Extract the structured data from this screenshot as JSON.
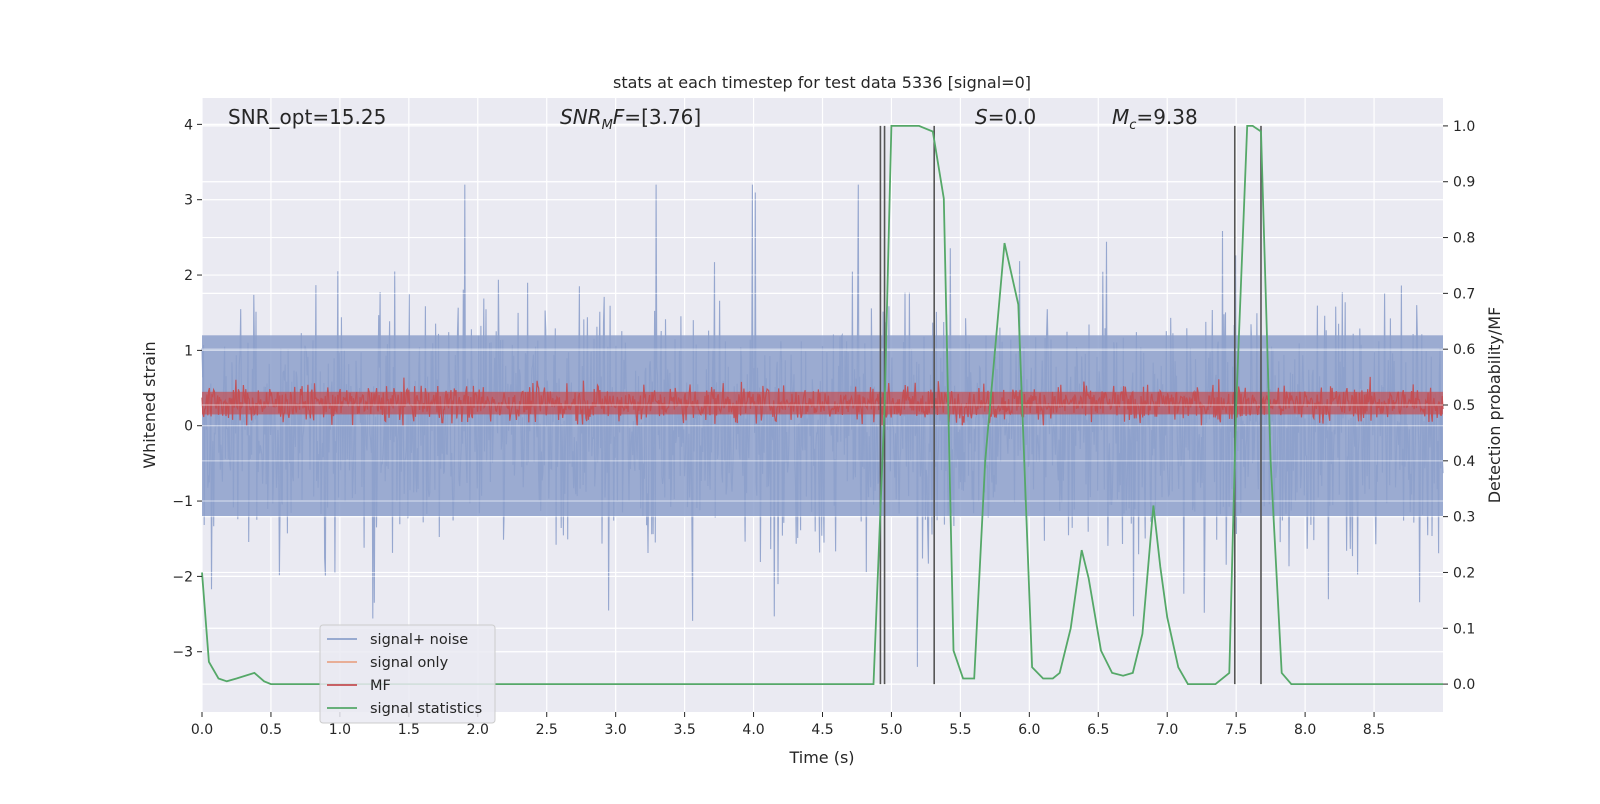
{
  "chart_data": {
    "type": "line",
    "title": "stats at each timestep for test data 5336 [signal=0]",
    "xlabel": "Time (s)",
    "ylabel_left": "Whitened strain",
    "ylabel_right": "Detection probability/MF",
    "xlim": [
      0.0,
      9.0
    ],
    "ylim_left": [
      -3.8,
      4.35
    ],
    "ylim_right": [
      -0.05,
      1.05
    ],
    "x_ticks": [
      0.0,
      0.5,
      1.0,
      1.5,
      2.0,
      2.5,
      3.0,
      3.5,
      4.0,
      4.5,
      5.0,
      5.5,
      6.0,
      6.5,
      7.0,
      7.5,
      8.0,
      8.5
    ],
    "x_tick_labels": [
      "0.0",
      "0.5",
      "1.0",
      "1.5",
      "2.0",
      "2.5",
      "3.0",
      "3.5",
      "4.0",
      "4.5",
      "5.0",
      "5.5",
      "6.0",
      "6.5",
      "7.0",
      "7.5",
      "8.0",
      "8.5"
    ],
    "y_left_ticks": [
      4,
      3,
      2,
      1,
      0,
      -1,
      -2,
      -3
    ],
    "y_left_tick_labels": [
      "4",
      "3",
      "2",
      "1",
      "0",
      "−1",
      "−2",
      "−3"
    ],
    "y_right_ticks": [
      1.0,
      0.9,
      0.8,
      0.7,
      0.6,
      0.5,
      0.4,
      0.3,
      0.2,
      0.1,
      0.0
    ],
    "y_right_tick_labels": [
      "1.0",
      "0.9",
      "0.8",
      "0.7",
      "0.6",
      "0.5",
      "0.4",
      "0.3",
      "0.2",
      "0.1",
      "0.0"
    ],
    "grid": true,
    "legend_position": "lower-left",
    "annotations": {
      "snr_opt": "SNR_opt=15.25",
      "snr_mf": "[3.76]",
      "s_value": "0.0",
      "mc_value": "9.38"
    },
    "series": [
      {
        "name": "signal+ noise",
        "color": "#8da0cb",
        "axis": "left",
        "style": "noise band",
        "range": [
          -3.4,
          3.2
        ]
      },
      {
        "name": "signal only",
        "color": "#e8a58a",
        "axis": "left",
        "values": []
      },
      {
        "name": "MF",
        "color": "#c44e52",
        "axis": "left",
        "style": "noise band",
        "range": [
          0.0,
          1.0
        ]
      },
      {
        "name": "signal statistics",
        "color": "#55a868",
        "axis": "right",
        "x": [
          0.0,
          0.05,
          0.12,
          0.18,
          0.25,
          0.38,
          0.45,
          0.5,
          1.0,
          4.0,
          4.87,
          4.95,
          5.0,
          5.2,
          5.3,
          5.38,
          5.45,
          5.52,
          5.6,
          5.68,
          5.82,
          5.92,
          6.02,
          6.1,
          6.17,
          6.22,
          6.3,
          6.38,
          6.43,
          6.52,
          6.6,
          6.68,
          6.75,
          6.82,
          6.9,
          6.95,
          7.0,
          7.08,
          7.15,
          7.25,
          7.35,
          7.45,
          7.5,
          7.58,
          7.62,
          7.68,
          7.75,
          7.83,
          7.9,
          8.0,
          9.0
        ],
        "y": [
          0.2,
          0.04,
          0.01,
          0.005,
          0.01,
          0.02,
          0.005,
          0.0,
          0.0,
          0.0,
          0.0,
          0.5,
          1.0,
          1.0,
          0.99,
          0.87,
          0.06,
          0.01,
          0.01,
          0.4,
          0.79,
          0.68,
          0.03,
          0.01,
          0.01,
          0.02,
          0.1,
          0.24,
          0.19,
          0.06,
          0.02,
          0.015,
          0.02,
          0.09,
          0.32,
          0.21,
          0.12,
          0.03,
          0.0,
          0.0,
          0.0,
          0.02,
          0.5,
          1.0,
          1.0,
          0.99,
          0.4,
          0.02,
          0.0,
          0.0,
          0.0
        ]
      }
    ],
    "vertical_lines_x": [
      4.92,
      4.95,
      5.31,
      7.49,
      7.68
    ]
  }
}
